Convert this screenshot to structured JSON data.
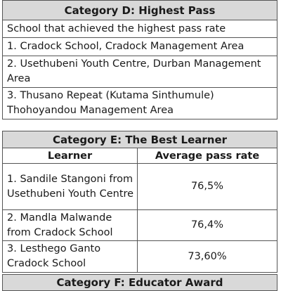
{
  "category_d": {
    "title": "Category D: Highest Pass",
    "subtitle": "School that achieved the highest pass rate",
    "items": [
      "1. Cradock School, Cradock Management Area",
      "2. Usethubeni Youth Centre, Durban Management Area",
      "3. Thusano Repeat (Kutama Sinthumule) Thohoyandou Management Area"
    ]
  },
  "category_e": {
    "title": "Category E: The Best Learner",
    "columns": [
      "Learner",
      "Average pass rate"
    ],
    "rows": [
      {
        "learner": "1. Sandile Stangoni from Usethubeni Youth Centre",
        "rate": "76,5%"
      },
      {
        "learner": "2. Mandla Malwande from Cradock School",
        "rate": "76,4%"
      },
      {
        "learner": "3. Lesthego Ganto Cradock School",
        "rate": "73,60%"
      }
    ]
  },
  "category_f": {
    "title": "Category F: Educator Award"
  }
}
